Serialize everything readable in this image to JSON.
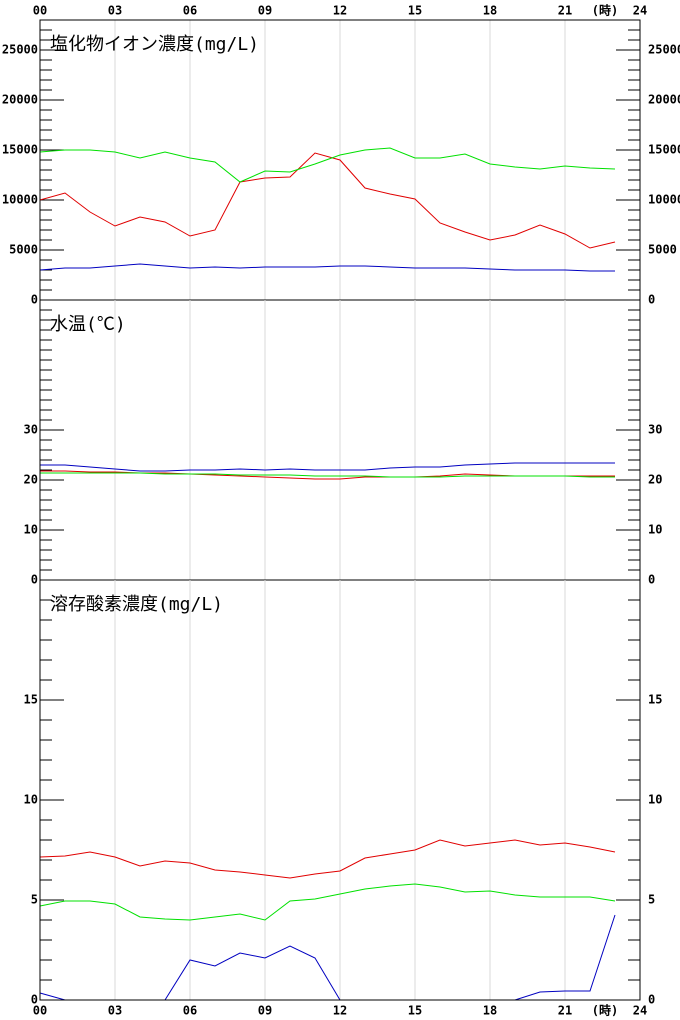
{
  "chart_data": [
    {
      "type": "line",
      "title": "塩化物イオン濃度(mg/L)",
      "x_label": "(時)",
      "x": [
        0,
        1,
        2,
        3,
        4,
        5,
        6,
        7,
        8,
        9,
        10,
        11,
        12,
        13,
        14,
        15,
        16,
        17,
        18,
        19,
        20,
        21,
        22,
        23
      ],
      "xlim": [
        0,
        24
      ],
      "xticks": [
        {
          "value": 0,
          "label": "00"
        },
        {
          "value": 3,
          "label": "03"
        },
        {
          "value": 6,
          "label": "06"
        },
        {
          "value": 9,
          "label": "09"
        },
        {
          "value": 12,
          "label": "12"
        },
        {
          "value": 15,
          "label": "15"
        },
        {
          "value": 18,
          "label": "18"
        },
        {
          "value": 21,
          "label": "21"
        },
        {
          "value": 24,
          "label": "24"
        }
      ],
      "ylim": [
        0,
        28000
      ],
      "yticks": [
        0,
        5000,
        10000,
        15000,
        20000,
        25000
      ],
      "grid": true,
      "series": [
        {
          "color": "#e00000",
          "values": [
            10000,
            10700,
            8800,
            7400,
            8300,
            7800,
            6400,
            7000,
            11800,
            12200,
            12300,
            14700,
            14000,
            11200,
            10600,
            10100,
            7700,
            6800,
            6000,
            6500,
            7500,
            6600,
            5200,
            5800
          ]
        },
        {
          "color": "#00e000",
          "values": [
            14800,
            15000,
            15000,
            14800,
            14200,
            14800,
            14200,
            13800,
            11800,
            12900,
            12800,
            13600,
            14500,
            15000,
            15200,
            14200,
            14200,
            14600,
            13600,
            13300,
            13100,
            13400,
            13200,
            13100
          ]
        },
        {
          "color": "#0000c0",
          "values": [
            3000,
            3200,
            3200,
            3400,
            3600,
            3400,
            3200,
            3300,
            3200,
            3300,
            3300,
            3300,
            3400,
            3400,
            3300,
            3200,
            3200,
            3200,
            3100,
            3000,
            3000,
            3000,
            2900,
            2900
          ]
        }
      ]
    },
    {
      "type": "line",
      "title": "水温(℃)",
      "x": [
        0,
        1,
        2,
        3,
        4,
        5,
        6,
        7,
        8,
        9,
        10,
        11,
        12,
        13,
        14,
        15,
        16,
        17,
        18,
        19,
        20,
        21,
        22,
        23
      ],
      "xlim": [
        0,
        24
      ],
      "xticks": [
        {
          "value": 0,
          "label": "00"
        },
        {
          "value": 3,
          "label": "03"
        },
        {
          "value": 6,
          "label": "06"
        },
        {
          "value": 9,
          "label": "09"
        },
        {
          "value": 12,
          "label": "12"
        },
        {
          "value": 15,
          "label": "15"
        },
        {
          "value": 18,
          "label": "18"
        },
        {
          "value": 21,
          "label": "21"
        },
        {
          "value": 24,
          "label": "24"
        }
      ],
      "ylim": [
        0,
        56
      ],
      "yticks": [
        0,
        10,
        20,
        30
      ],
      "grid": true,
      "series": [
        {
          "color": "#e00000",
          "values": [
            21.8,
            21.8,
            21.6,
            21.6,
            21.4,
            21.4,
            21.2,
            21.0,
            20.8,
            20.6,
            20.4,
            20.2,
            20.2,
            20.6,
            20.6,
            20.6,
            20.8,
            21.2,
            21.0,
            20.8,
            20.8,
            20.8,
            20.8,
            20.8
          ]
        },
        {
          "color": "#00e000",
          "values": [
            21.4,
            21.4,
            21.4,
            21.4,
            21.4,
            21.2,
            21.2,
            21.2,
            21.0,
            21.0,
            21.0,
            20.8,
            20.8,
            20.8,
            20.6,
            20.6,
            20.6,
            20.8,
            20.8,
            20.8,
            20.8,
            20.8,
            20.6,
            20.6
          ]
        },
        {
          "color": "#0000c0",
          "values": [
            23.0,
            23.0,
            22.6,
            22.2,
            21.8,
            21.8,
            22.0,
            22.0,
            22.2,
            22.0,
            22.2,
            22.0,
            22.0,
            22.0,
            22.4,
            22.6,
            22.6,
            23.0,
            23.2,
            23.4,
            23.4,
            23.4,
            23.4,
            23.4
          ]
        }
      ]
    },
    {
      "type": "line",
      "title": "溶存酸素濃度(mg/L)",
      "x_label": "(時)",
      "x": [
        0,
        1,
        2,
        3,
        4,
        5,
        6,
        7,
        8,
        9,
        10,
        11,
        12,
        13,
        14,
        15,
        16,
        17,
        18,
        19,
        20,
        21,
        22,
        23
      ],
      "xlim": [
        0,
        24
      ],
      "xticks": [
        {
          "value": 0,
          "label": "00"
        },
        {
          "value": 3,
          "label": "03"
        },
        {
          "value": 6,
          "label": "06"
        },
        {
          "value": 9,
          "label": "09"
        },
        {
          "value": 12,
          "label": "12"
        },
        {
          "value": 15,
          "label": "15"
        },
        {
          "value": 18,
          "label": "18"
        },
        {
          "value": 21,
          "label": "21"
        },
        {
          "value": 24,
          "label": "24"
        }
      ],
      "ylim": [
        0,
        21
      ],
      "yticks": [
        0,
        5,
        10,
        15
      ],
      "grid": true,
      "series": [
        {
          "color": "#e00000",
          "values": [
            7.15,
            7.2,
            7.4,
            7.15,
            6.7,
            6.95,
            6.85,
            6.5,
            6.4,
            6.25,
            6.1,
            6.3,
            6.45,
            7.1,
            7.3,
            7.5,
            8.0,
            7.7,
            7.85,
            8.0,
            7.75,
            7.85,
            7.65,
            7.4
          ]
        },
        {
          "color": "#00e000",
          "values": [
            4.7,
            4.95,
            4.95,
            4.8,
            4.15,
            4.05,
            4.0,
            4.15,
            4.3,
            4.0,
            4.95,
            5.05,
            5.3,
            5.55,
            5.7,
            5.8,
            5.65,
            5.4,
            5.45,
            5.25,
            5.15,
            5.15,
            5.15,
            4.95
          ]
        },
        {
          "color": "#0000c0",
          "values": [
            0.35,
            0,
            0,
            0,
            0,
            0,
            2.0,
            1.7,
            2.35,
            2.1,
            2.7,
            2.1,
            0,
            0,
            0,
            0,
            0,
            0,
            0,
            0,
            0.4,
            0.45,
            0.45,
            4.25
          ]
        }
      ]
    }
  ]
}
